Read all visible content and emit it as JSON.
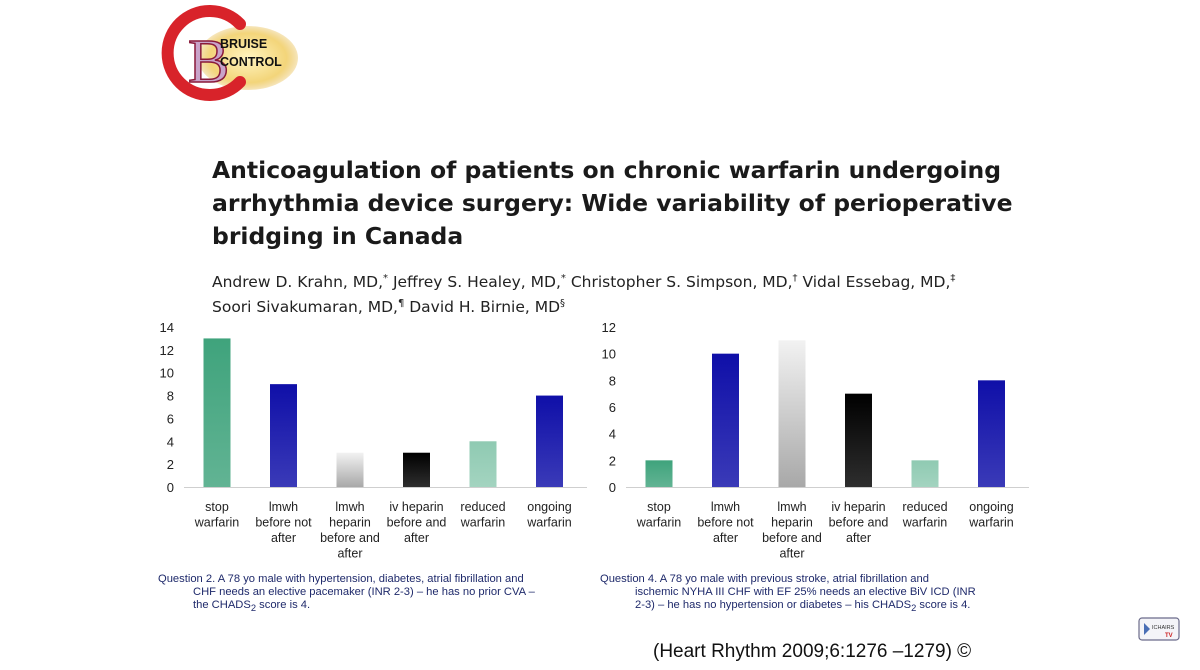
{
  "logo": {
    "line1": "BRUISE",
    "line2": "CONTROL"
  },
  "paper": {
    "title_lines": [
      "Anticoagulation of patients on chronic warfarin undergoing",
      "arrhythmia device surgery: Wide variability of perioperative",
      "bridging in Canada"
    ],
    "authors_line1": [
      {
        "name": "Andrew D. Krahn, MD,",
        "mark": "*"
      },
      {
        "name": " Jeffrey S. Healey, MD,",
        "mark": "*"
      },
      {
        "name": " Christopher S. Simpson, MD,",
        "mark": "†"
      },
      {
        "name": " Vidal Essebag, MD,",
        "mark": "‡"
      }
    ],
    "authors_line2": [
      {
        "name": "Soori Sivakumaran, MD,",
        "mark": "¶"
      },
      {
        "name": " David H. Birnie, MD",
        "mark": "§"
      }
    ]
  },
  "chart_data": [
    {
      "type": "bar",
      "categories": [
        [
          "stop",
          "warfarin"
        ],
        [
          "lmwh",
          "before not",
          "after"
        ],
        [
          "lmwh",
          "heparin",
          "before and",
          "after"
        ],
        [
          "iv heparin",
          "before and",
          "after"
        ],
        [
          "reduced",
          "warfarin"
        ],
        [
          "ongoing",
          "warfarin"
        ]
      ],
      "values": [
        13,
        9,
        3,
        3,
        4,
        8
      ],
      "colors": [
        "#3fa37c",
        "#0f0fa8",
        "#d8d8d8",
        "#000000",
        "#8fcab2",
        "#0f0fa8"
      ],
      "yticks": [
        0,
        2,
        4,
        6,
        8,
        10,
        12,
        14
      ],
      "ylim": [
        0,
        14
      ],
      "grid": false
    },
    {
      "type": "bar",
      "categories": [
        [
          "stop",
          "warfarin"
        ],
        [
          "lmwh",
          "before not",
          "after"
        ],
        [
          "lmwh",
          "heparin",
          "before and",
          "after"
        ],
        [
          "iv heparin",
          "before and",
          "after"
        ],
        [
          "reduced",
          "warfarin"
        ],
        [
          "ongoing",
          "warfarin"
        ]
      ],
      "values": [
        2,
        10,
        11,
        7,
        2,
        8
      ],
      "colors": [
        "#3fa37c",
        "#0f0fa8",
        "#d8d8d8",
        "#000000",
        "#8fcab2",
        "#0f0fa8"
      ],
      "yticks": [
        0,
        2,
        4,
        6,
        8,
        10,
        12
      ],
      "ylim": [
        0,
        12
      ],
      "grid": false
    }
  ],
  "captions": {
    "left": {
      "line1": "Question 2.  A 78 yo male with hypertension, diabetes, atrial fibrillation and",
      "line2": "CHF needs an elective pacemaker (INR 2-3) – he has no prior CVA –",
      "line3_pre": "the CHADS",
      "line3_sub": "2",
      "line3_post": " score is 4."
    },
    "right": {
      "line1": "Question 4.  A 78 yo male with previous stroke, atrial fibrillation and",
      "line2": "ischemic NYHA III CHF with EF 25% needs an elective BiV ICD (INR",
      "line3_pre": "2-3) – he has no hypertension or diabetes – his CHADS",
      "line3_sub": "2",
      "line3_post": " score is 4."
    }
  },
  "citation": "(Heart Rhythm 2009;6:1276 –1279) ©",
  "badge": {
    "line1": "ICHAIRS",
    "line2": "TV"
  }
}
